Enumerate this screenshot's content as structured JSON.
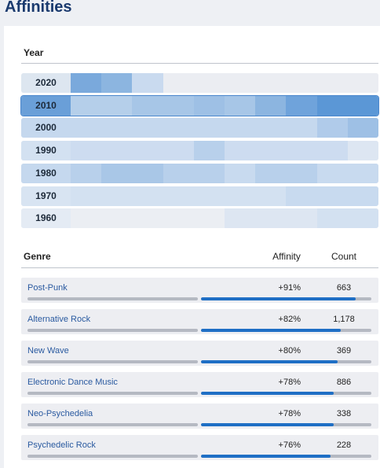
{
  "header": {
    "title": "Affinities"
  },
  "year_section": {
    "heading": "Year",
    "rows": [
      {
        "label": "2020",
        "selected": false,
        "label_color": "#dde6f0",
        "cells": [
          "#7aa9dc",
          "#8cb5e0",
          "#c9daef",
          "#ebedf2",
          "#ebedf2",
          "#ebedf2",
          "#ebedf2",
          "#ebedf2",
          "#ebedf2",
          "#ebedf2"
        ]
      },
      {
        "label": "2010",
        "selected": true,
        "label_color": "#6a9fd8",
        "cells": [
          "#b5cfea",
          "#b5cfea",
          "#a7c6e7",
          "#a7c6e7",
          "#9ec0e5",
          "#a7c6e7",
          "#8cb5e0",
          "#6fa3db",
          "#5b97d6",
          "#5b97d6"
        ]
      },
      {
        "label": "2000",
        "selected": false,
        "label_color": "#c5d8ee",
        "cells": [
          "#c5d8ee",
          "#c5d8ee",
          "#c5d8ee",
          "#c5d8ee",
          "#c5d8ee",
          "#c5d8ee",
          "#c5d8ee",
          "#c5d8ee",
          "#b0cbea",
          "#9ec0e5"
        ]
      },
      {
        "label": "1990",
        "selected": false,
        "label_color": "#d3e1f1",
        "cells": [
          "#cddcf0",
          "#cddcf0",
          "#cddcf0",
          "#cddcf0",
          "#b8d0eb",
          "#cddcf0",
          "#cddcf0",
          "#cddcf0",
          "#cddcf0",
          "#dde6f2"
        ]
      },
      {
        "label": "1980",
        "selected": false,
        "label_color": "#c5d8ee",
        "cells": [
          "#b8d0eb",
          "#a9c7e7",
          "#a9c7e7",
          "#b8d0eb",
          "#b8d0eb",
          "#c8daef",
          "#b8d0eb",
          "#b8d0eb",
          "#c8daef",
          "#c8daef"
        ]
      },
      {
        "label": "1970",
        "selected": false,
        "label_color": "#d8e4f2",
        "cells": [
          "#d3e1f1",
          "#d3e1f1",
          "#d3e1f1",
          "#d3e1f1",
          "#d3e1f1",
          "#d3e1f1",
          "#d3e1f1",
          "#c8daef",
          "#c8daef",
          "#c8daef"
        ]
      },
      {
        "label": "1960",
        "selected": false,
        "label_color": "#e4ebf4",
        "cells": [
          "#ebeef3",
          "#ebeef3",
          "#ebeef3",
          "#ebeef3",
          "#ebeef3",
          "#dde6f2",
          "#dde6f2",
          "#dde6f2",
          "#d3e1f1",
          "#d3e1f1"
        ]
      }
    ]
  },
  "genre_table": {
    "columns": [
      "Genre",
      "Affinity",
      "Count"
    ],
    "rows": [
      {
        "name": "Post-Punk",
        "affinity": 91,
        "affinity_label": "+91%",
        "count": "663"
      },
      {
        "name": "Alternative Rock",
        "affinity": 82,
        "affinity_label": "+82%",
        "count": "1,178"
      },
      {
        "name": "New Wave",
        "affinity": 80,
        "affinity_label": "+80%",
        "count": "369"
      },
      {
        "name": "Electronic Dance Music",
        "affinity": 78,
        "affinity_label": "+78%",
        "count": "886"
      },
      {
        "name": "Neo-Psychedelia",
        "affinity": 78,
        "affinity_label": "+78%",
        "count": "338"
      },
      {
        "name": "Psychedelic Rock",
        "affinity": 76,
        "affinity_label": "+76%",
        "count": "228"
      }
    ]
  }
}
